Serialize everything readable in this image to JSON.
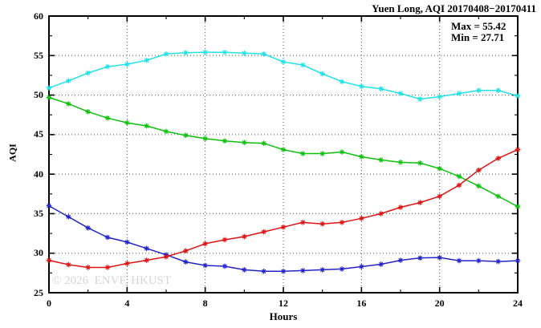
{
  "title": "Yuen Long, AQI 20170408−20170411",
  "annotation": {
    "max_label": "Max = 55.42",
    "min_label": "Min = 27.71"
  },
  "watermark": "© 2026  ENVF, HKUST",
  "chart_data": {
    "type": "line",
    "title": "Yuen Long, AQI 20170408−20170411",
    "xlabel": "Hours",
    "ylabel": "AQI",
    "xlim": [
      0,
      24
    ],
    "ylim": [
      25,
      60
    ],
    "x_major_ticks": [
      0,
      4,
      8,
      12,
      16,
      20,
      24
    ],
    "x_minor_ticks": [
      2,
      6,
      10,
      14,
      18,
      22
    ],
    "y_major_ticks": [
      25,
      30,
      35,
      40,
      45,
      50,
      55,
      60
    ],
    "y_minor_ticks": [
      27.5,
      32.5,
      37.5,
      42.5,
      47.5,
      52.5,
      57.5
    ],
    "grid_x": [
      4,
      8,
      12,
      16,
      20
    ],
    "grid_y": [
      30,
      35,
      40,
      45,
      50,
      55
    ],
    "legend_position": "none",
    "marker": "asterisk",
    "max": 55.42,
    "min": 27.71,
    "x": [
      0,
      1,
      2,
      3,
      4,
      5,
      6,
      7,
      8,
      9,
      10,
      11,
      12,
      13,
      14,
      15,
      16,
      17,
      18,
      19,
      20,
      21,
      22,
      23,
      24
    ],
    "series": [
      {
        "name": "cyan",
        "color": "#1fe3e8",
        "values": [
          50.9,
          51.8,
          52.8,
          53.6,
          53.9,
          54.4,
          55.2,
          55.35,
          55.42,
          55.4,
          55.3,
          55.2,
          54.2,
          53.8,
          52.7,
          51.7,
          51.1,
          50.8,
          50.2,
          49.5,
          49.8,
          50.2,
          50.6,
          50.6,
          49.9
        ]
      },
      {
        "name": "green",
        "color": "#0cc20c",
        "values": [
          49.7,
          48.9,
          47.9,
          47.1,
          46.5,
          46.1,
          45.4,
          44.9,
          44.5,
          44.2,
          44.0,
          43.9,
          43.1,
          42.6,
          42.6,
          42.8,
          42.2,
          41.8,
          41.5,
          41.4,
          40.7,
          39.7,
          38.5,
          37.2,
          35.9
        ]
      },
      {
        "name": "blue",
        "color": "#2323cc",
        "values": [
          36.0,
          34.6,
          33.2,
          32.0,
          31.4,
          30.6,
          29.8,
          28.9,
          28.45,
          28.35,
          27.9,
          27.71,
          27.71,
          27.8,
          27.9,
          28.0,
          28.3,
          28.6,
          29.1,
          29.4,
          29.45,
          29.05,
          29.05,
          28.95,
          29.05
        ]
      },
      {
        "name": "red",
        "color": "#e01313",
        "values": [
          29.1,
          28.55,
          28.2,
          28.2,
          28.7,
          29.1,
          29.55,
          30.3,
          31.2,
          31.7,
          32.1,
          32.7,
          33.3,
          33.9,
          33.7,
          33.9,
          34.4,
          35.0,
          35.8,
          36.4,
          37.2,
          38.6,
          40.5,
          42.0,
          43.1
        ]
      }
    ]
  }
}
